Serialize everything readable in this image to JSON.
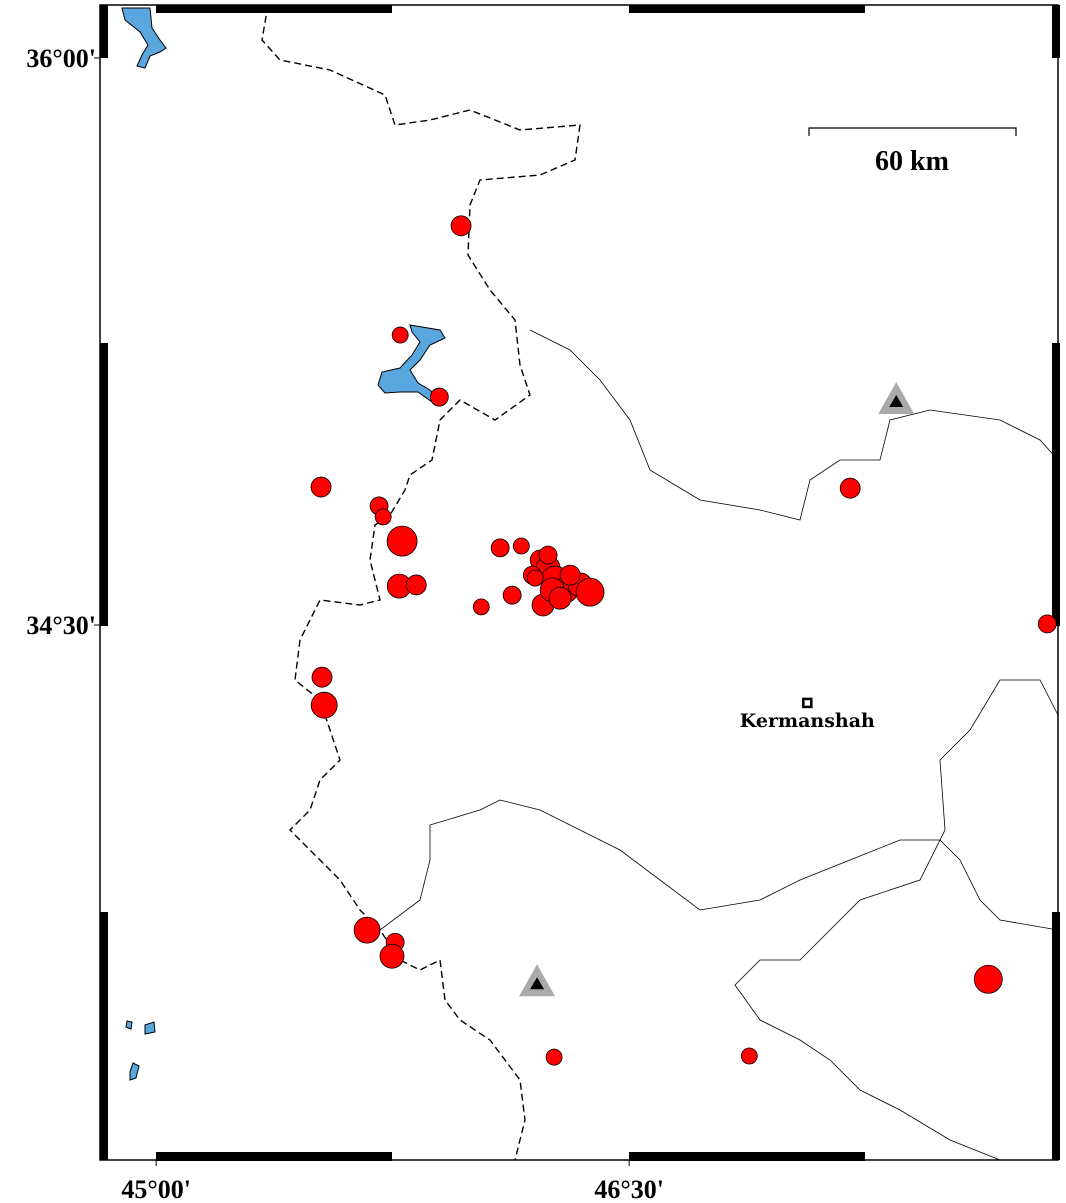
{
  "map": {
    "lonlim": [
      44.822,
      47.86
    ],
    "latlim": [
      33.085,
      36.14
    ],
    "lon_ticks": [
      {
        "value": 45,
        "label": "45°00'"
      },
      {
        "value": 46.5,
        "label": "46°30'"
      }
    ],
    "lat_ticks": [
      {
        "value": 36,
        "label": "36°00'"
      },
      {
        "value": 34.5,
        "label": "34°30'"
      }
    ],
    "scale_bar": "60 km",
    "city": {
      "name": "Kermanshah",
      "lon": 47.065,
      "lat": 34.294
    },
    "volcanoes": [
      {
        "lon": 47.347,
        "lat": 35.09
      },
      {
        "lon": 46.208,
        "lat": 33.55
      }
    ],
    "event_color": "#ff0000",
    "events": [
      {
        "lon": 45.967,
        "lat": 35.556,
        "mag": 4.0
      },
      {
        "lon": 45.774,
        "lat": 35.267,
        "mag": 3.6
      },
      {
        "lon": 45.898,
        "lat": 35.103,
        "mag": 3.8
      },
      {
        "lon": 45.523,
        "lat": 34.865,
        "mag": 4.0
      },
      {
        "lon": 45.707,
        "lat": 34.815,
        "mag": 3.8
      },
      {
        "lon": 45.72,
        "lat": 34.786,
        "mag": 3.6
      },
      {
        "lon": 45.78,
        "lat": 34.722,
        "mag": 5.0
      },
      {
        "lon": 45.771,
        "lat": 34.603,
        "mag": 4.4
      },
      {
        "lon": 45.825,
        "lat": 34.606,
        "mag": 4.0
      },
      {
        "lon": 46.091,
        "lat": 34.704,
        "mag": 3.8
      },
      {
        "lon": 46.158,
        "lat": 34.709,
        "mag": 3.6
      },
      {
        "lon": 46.031,
        "lat": 34.548,
        "mag": 3.6
      },
      {
        "lon": 46.129,
        "lat": 34.579,
        "mag": 3.8
      },
      {
        "lon": 46.218,
        "lat": 34.672,
        "mag": 4.0
      },
      {
        "lon": 46.243,
        "lat": 34.651,
        "mag": 4.4
      },
      {
        "lon": 46.193,
        "lat": 34.632,
        "mag": 3.8
      },
      {
        "lon": 46.265,
        "lat": 34.619,
        "mag": 4.8
      },
      {
        "lon": 46.297,
        "lat": 34.593,
        "mag": 4.6
      },
      {
        "lon": 46.345,
        "lat": 34.606,
        "mag": 4.4
      },
      {
        "lon": 46.376,
        "lat": 34.587,
        "mag": 4.8
      },
      {
        "lon": 46.227,
        "lat": 34.553,
        "mag": 4.2
      },
      {
        "lon": 46.256,
        "lat": 34.593,
        "mag": 4.4
      },
      {
        "lon": 46.313,
        "lat": 34.632,
        "mag": 4.0
      },
      {
        "lon": 46.202,
        "lat": 34.624,
        "mag": 3.6
      },
      {
        "lon": 46.281,
        "lat": 34.571,
        "mag": 4.2
      },
      {
        "lon": 46.243,
        "lat": 34.685,
        "mag": 3.8
      },
      {
        "lon": 45.526,
        "lat": 34.362,
        "mag": 4.0
      },
      {
        "lon": 45.533,
        "lat": 34.288,
        "mag": 4.6
      },
      {
        "lon": 45.669,
        "lat": 33.693,
        "mag": 4.6
      },
      {
        "lon": 45.758,
        "lat": 33.661,
        "mag": 3.8
      },
      {
        "lon": 45.748,
        "lat": 33.624,
        "mag": 4.4
      },
      {
        "lon": 47.201,
        "lat": 34.862,
        "mag": 4.0
      },
      {
        "lon": 47.826,
        "lat": 34.503,
        "mag": 3.8
      },
      {
        "lon": 47.639,
        "lat": 33.563,
        "mag": 4.8
      },
      {
        "lon": 46.262,
        "lat": 33.357,
        "mag": 3.6
      },
      {
        "lon": 46.881,
        "lat": 33.36,
        "mag": 3.6
      }
    ]
  }
}
